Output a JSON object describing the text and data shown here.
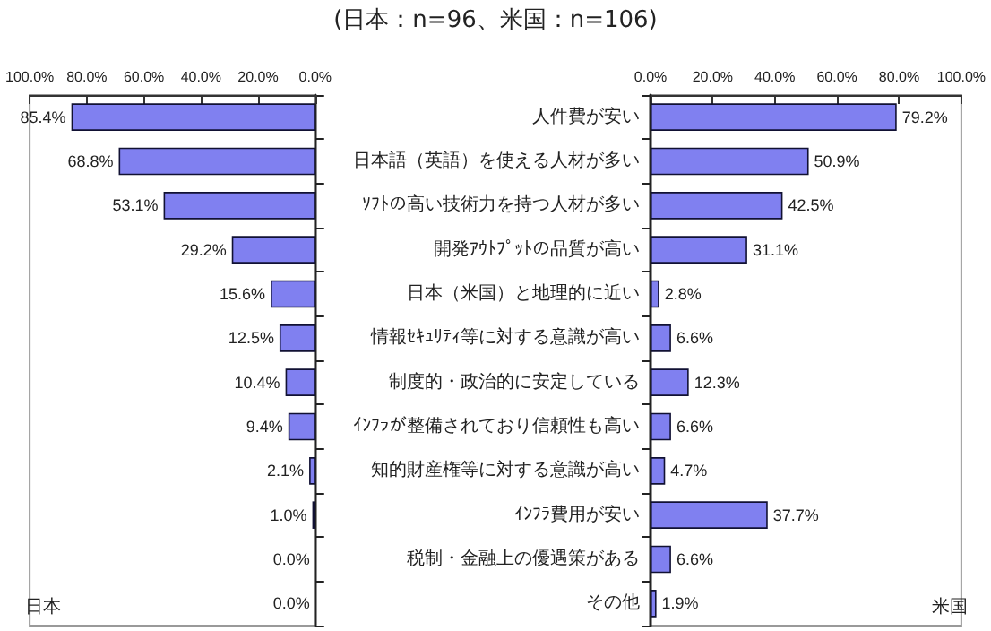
{
  "chart_data": [
    {
      "type": "bar",
      "title": "(日本：n=96、米国：n=106)",
      "orientation": "horizontal",
      "categories": [
        null,
        null,
        null,
        null,
        null,
        null,
        null,
        null,
        null,
        null,
        null,
        null
      ],
      "values": [
        85.4,
        68.8,
        53.1,
        29.2,
        15.6,
        12.5,
        10.4,
        9.4,
        2.1,
        1.0,
        0.0,
        0.0
      ],
      "value_labels": [
        "85.4%",
        "68.8%",
        "53.1%",
        "29.2%",
        "15.6%",
        "12.5%",
        "10.4%",
        "9.4%",
        "2.1%",
        "1.0%",
        "0.0%",
        "0.0%"
      ],
      "color": "#8080f0",
      "xlim": [
        100,
        0
      ],
      "xticks": [
        {
          "value": 100,
          "label": "100.0%"
        },
        {
          "value": 80,
          "label": "80.0%"
        },
        {
          "value": 60,
          "label": "60.0%"
        },
        {
          "value": 40,
          "label": "40.0%"
        },
        {
          "value": 20,
          "label": "20.0%"
        },
        {
          "value": 0,
          "label": "0.0%"
        }
      ],
      "tick_labels": "x",
      "grid": false,
      "annotations": [
        "日本"
      ]
    },
    {
      "type": "bar",
      "orientation": "horizontal",
      "categories": [
        "人件費が安い",
        "日本語（英語）を使える人材が多い",
        "ｿﾌﾄの高い技術力を持つ人材が多い",
        "開発ｱｳﾄﾌﾟｯﾄの品質が高い",
        "日本（米国）と地理的に近い",
        "情報ｾｷｭﾘﾃｨ等に対する意識が高い",
        "制度的・政治的に安定している",
        "ｲﾝﾌﾗが整備されており信頼性も高い",
        "知的財産権等に対する意識が高い",
        "ｲﾝﾌﾗ費用が安い",
        "税制・金融上の優遇策がある",
        "その他"
      ],
      "values": [
        79.2,
        50.9,
        42.5,
        31.1,
        2.8,
        6.6,
        12.3,
        6.6,
        4.7,
        37.7,
        6.6,
        1.9
      ],
      "value_labels": [
        "79.2%",
        "50.9%",
        "42.5%",
        "31.1%",
        "2.8%",
        "6.6%",
        "12.3%",
        "6.6%",
        "4.7%",
        "37.7%",
        "6.6%",
        "1.9%"
      ],
      "color": "#8080f0",
      "xlim": [
        0,
        100
      ],
      "xticks": [
        {
          "value": 0,
          "label": "0.0%"
        },
        {
          "value": 20,
          "label": "20.0%"
        },
        {
          "value": 40,
          "label": "40.0%"
        },
        {
          "value": 60,
          "label": "60.0%"
        },
        {
          "value": 80,
          "label": "80.0%"
        },
        {
          "value": 100,
          "label": "100.0%"
        }
      ],
      "grid": false,
      "annotations": [
        "米国"
      ]
    }
  ]
}
